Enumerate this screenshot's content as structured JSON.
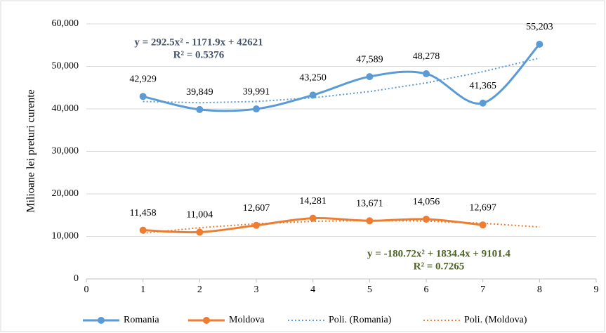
{
  "chart_data": {
    "type": "scatter-smooth",
    "y_label": "Milioane lei preturi curente",
    "xlim": [
      0,
      9
    ],
    "xticks": [
      0,
      1,
      2,
      3,
      4,
      5,
      6,
      7,
      8,
      9
    ],
    "ylim": [
      0,
      60000
    ],
    "yticks": [
      0,
      {
        "value": 10000,
        "label": "10,000"
      },
      {
        "value": 20000,
        "label": "20,000"
      },
      {
        "value": 30000,
        "label": "30,000"
      },
      {
        "value": 40000,
        "label": "40,000"
      },
      {
        "value": 50000,
        "label": "50,000"
      },
      {
        "value": 60000,
        "label": "60,000"
      }
    ],
    "grid": true,
    "legend": "bottom",
    "series": [
      {
        "name": "Romania",
        "color": "#5b9bd5",
        "line_style": "solid",
        "markers": true,
        "x": [
          1,
          2,
          3,
          4,
          5,
          6,
          7,
          8
        ],
        "values": [
          42929,
          39849,
          39991,
          43250,
          47589,
          48278,
          41365,
          55203
        ],
        "value_labels": [
          "42,929",
          "39,849",
          "39,991",
          "43,250",
          "47,589",
          "48,278",
          "41,365",
          "55,203"
        ]
      },
      {
        "name": "Moldova",
        "color": "#ed7d31",
        "line_style": "solid",
        "markers": true,
        "x": [
          1,
          2,
          3,
          4,
          5,
          6,
          7
        ],
        "values": [
          11458,
          11004,
          12607,
          14281,
          13671,
          14056,
          12697
        ],
        "value_labels": [
          "11,458",
          "11,004",
          "12,607",
          "14,281",
          "13,671",
          "14,056",
          "12,697"
        ]
      },
      {
        "name": "Poli. (Romania)",
        "color": "#5b9bd5",
        "line_style": "dotted",
        "markers": false,
        "x": [
          1,
          2,
          3,
          4,
          5,
          6,
          7,
          8
        ],
        "values": [
          41742,
          41447,
          41738,
          42613,
          44074,
          46120,
          48750,
          51966
        ]
      },
      {
        "name": "Poli. (Moldova)",
        "color": "#ed7d31",
        "line_style": "dotted",
        "markers": false,
        "x": [
          1,
          2,
          3,
          4,
          5,
          6,
          7,
          8
        ],
        "values": [
          10755,
          12047,
          12978,
          13548,
          13755,
          13602,
          13087,
          12211
        ]
      }
    ],
    "annotations": [
      {
        "text": "y = 292.5x² - 1171.9x + 42621",
        "color": "#44546a"
      },
      {
        "text": "R² = 0.5376",
        "color": "#44546a"
      },
      {
        "text": "y = -180.72x² + 1834.4x + 9101.4",
        "color": "#4f6228"
      },
      {
        "text": "R² = 0.7265",
        "color": "#4f6228"
      }
    ]
  }
}
